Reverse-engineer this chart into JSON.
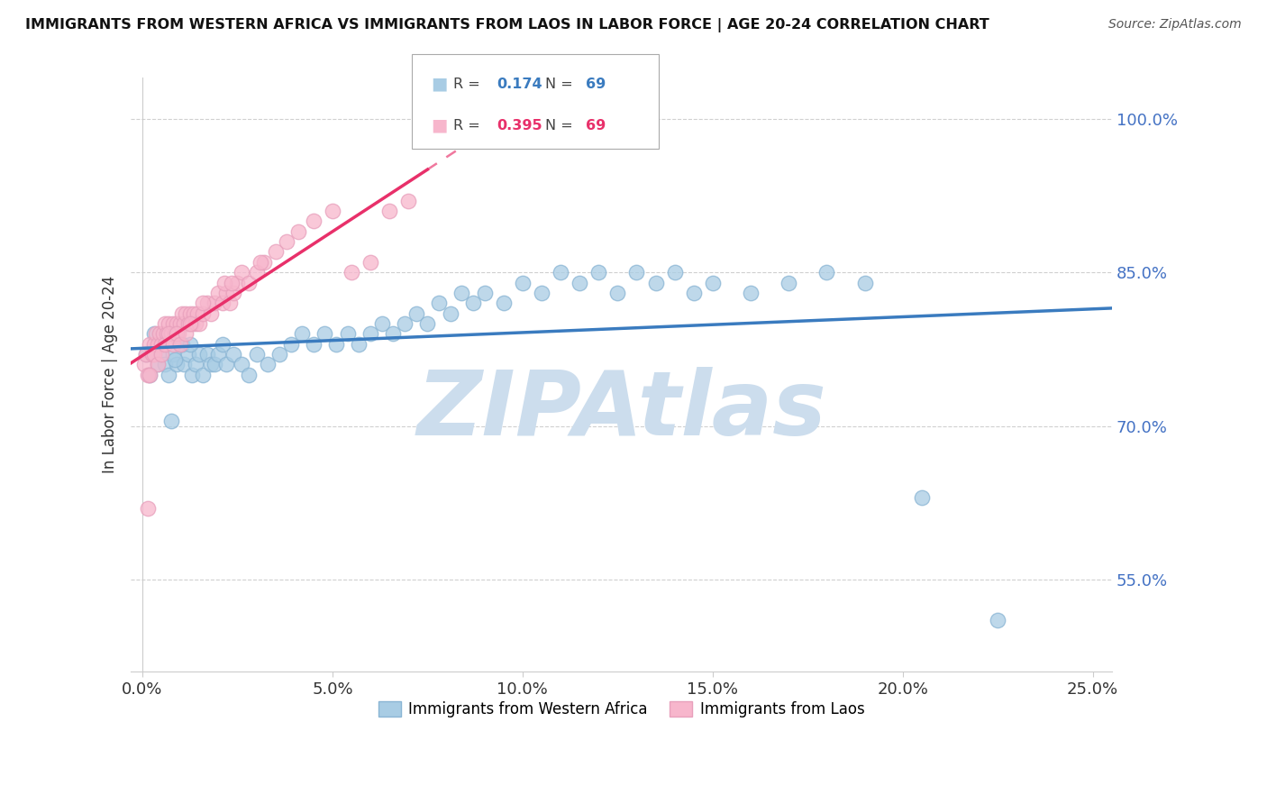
{
  "title": "IMMIGRANTS FROM WESTERN AFRICA VS IMMIGRANTS FROM LAOS IN LABOR FORCE | AGE 20-24 CORRELATION CHART",
  "source": "Source: ZipAtlas.com",
  "ylabel": "In Labor Force | Age 20-24",
  "xlabel_values": [
    0.0,
    5.0,
    10.0,
    15.0,
    20.0,
    25.0
  ],
  "ylabel_values": [
    55.0,
    70.0,
    85.0,
    100.0
  ],
  "xlim": [
    -0.3,
    25.5
  ],
  "ylim": [
    46.0,
    104.0
  ],
  "R_blue": 0.174,
  "N_blue": 69,
  "R_pink": 0.395,
  "N_pink": 69,
  "blue_scatter_color": "#a8cce4",
  "pink_scatter_color": "#f7b6cc",
  "blue_line_color": "#3a7bbf",
  "pink_line_color": "#e8306a",
  "watermark": "ZIPAtlas",
  "watermark_color": "#ccdded",
  "legend_labels": [
    "Immigrants from Western Africa",
    "Immigrants from Laos"
  ],
  "blue_x": [
    0.1,
    0.2,
    0.3,
    0.4,
    0.5,
    0.6,
    0.7,
    0.8,
    0.9,
    1.0,
    1.1,
    1.2,
    1.3,
    1.4,
    1.5,
    1.6,
    1.7,
    1.8,
    1.9,
    2.0,
    2.1,
    2.2,
    2.4,
    2.6,
    2.8,
    3.0,
    3.3,
    3.6,
    3.9,
    4.2,
    4.5,
    4.8,
    5.1,
    5.4,
    5.7,
    6.0,
    6.3,
    6.6,
    6.9,
    7.2,
    7.5,
    7.8,
    8.1,
    8.4,
    8.7,
    9.0,
    9.5,
    10.0,
    10.5,
    11.0,
    11.5,
    12.0,
    12.5,
    13.0,
    13.5,
    14.0,
    14.5,
    15.0,
    16.0,
    17.0,
    18.0,
    19.0,
    20.5,
    22.5,
    1.05,
    1.15,
    1.25,
    0.85,
    0.75
  ],
  "blue_y": [
    77.0,
    75.0,
    79.0,
    76.0,
    77.0,
    76.0,
    75.0,
    77.0,
    76.0,
    78.0,
    76.0,
    77.0,
    75.0,
    76.0,
    77.0,
    75.0,
    77.0,
    76.0,
    76.0,
    77.0,
    78.0,
    76.0,
    77.0,
    76.0,
    75.0,
    77.0,
    76.0,
    77.0,
    78.0,
    79.0,
    78.0,
    79.0,
    78.0,
    79.0,
    78.0,
    79.0,
    80.0,
    79.0,
    80.0,
    81.0,
    80.0,
    82.0,
    81.0,
    83.0,
    82.0,
    83.0,
    82.0,
    84.0,
    83.0,
    85.0,
    84.0,
    85.0,
    83.0,
    85.0,
    84.0,
    85.0,
    83.0,
    84.0,
    83.0,
    84.0,
    85.0,
    84.0,
    63.0,
    51.0,
    78.0,
    80.0,
    78.0,
    76.5,
    70.5
  ],
  "pink_x": [
    0.05,
    0.1,
    0.15,
    0.2,
    0.25,
    0.3,
    0.35,
    0.4,
    0.45,
    0.5,
    0.55,
    0.6,
    0.65,
    0.7,
    0.75,
    0.8,
    0.85,
    0.9,
    0.95,
    1.0,
    1.05,
    1.1,
    1.15,
    1.2,
    1.25,
    1.3,
    1.35,
    1.4,
    1.45,
    1.5,
    1.6,
    1.7,
    1.8,
    1.9,
    2.0,
    2.1,
    2.2,
    2.3,
    2.4,
    2.5,
    2.6,
    2.8,
    3.0,
    3.2,
    3.5,
    3.8,
    4.1,
    4.5,
    5.0,
    5.5,
    6.0,
    6.5,
    7.0,
    0.3,
    0.4,
    0.5,
    0.6,
    0.7,
    0.8,
    0.9,
    1.0,
    0.2,
    1.15,
    1.25,
    1.6,
    2.15,
    2.35,
    3.1,
    0.15
  ],
  "pink_y": [
    76.0,
    77.0,
    75.0,
    78.0,
    77.0,
    78.0,
    79.0,
    78.0,
    79.0,
    78.0,
    79.0,
    80.0,
    79.0,
    80.0,
    79.0,
    80.0,
    79.0,
    80.0,
    79.0,
    80.0,
    81.0,
    80.0,
    81.0,
    80.0,
    81.0,
    80.0,
    81.0,
    80.0,
    81.0,
    80.0,
    81.0,
    82.0,
    81.0,
    82.0,
    83.0,
    82.0,
    83.0,
    82.0,
    83.0,
    84.0,
    85.0,
    84.0,
    85.0,
    86.0,
    87.0,
    88.0,
    89.0,
    90.0,
    91.0,
    85.0,
    86.0,
    91.0,
    92.0,
    77.0,
    76.0,
    77.0,
    78.0,
    79.0,
    78.0,
    79.0,
    78.0,
    75.0,
    79.0,
    80.0,
    82.0,
    84.0,
    84.0,
    86.0,
    62.0
  ]
}
